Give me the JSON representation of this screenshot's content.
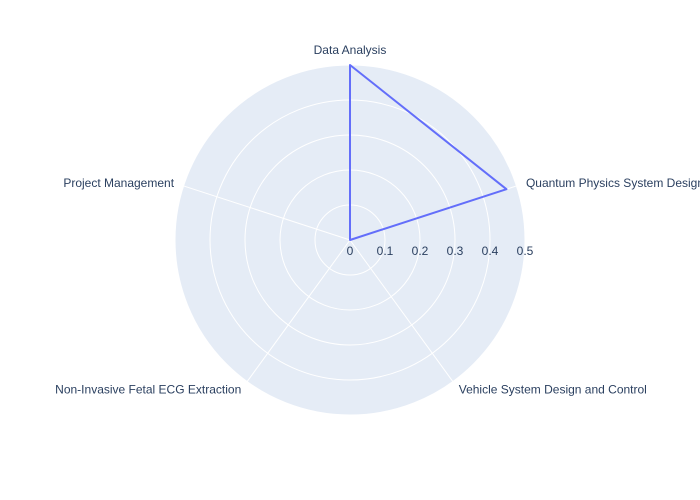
{
  "chart_data": {
    "type": "radar",
    "categories": [
      "Data Analysis",
      "Quantum Physics System Design",
      "Vehicle System Design and Control",
      "Non-Invasive Fetal ECG Extraction",
      "Project Management"
    ],
    "series": [
      {
        "values": [
          0.5,
          0.47,
          0,
          0,
          0
        ]
      }
    ],
    "radial_ticks": [
      "0",
      "0.1",
      "0.2",
      "0.3",
      "0.4",
      "0.5"
    ],
    "rlim": [
      0,
      0.5
    ],
    "grid": true,
    "colors": {
      "background": "#e5ecf6",
      "grid": "#ffffff",
      "line": "#636efa",
      "text": "#2a3f5f"
    }
  }
}
